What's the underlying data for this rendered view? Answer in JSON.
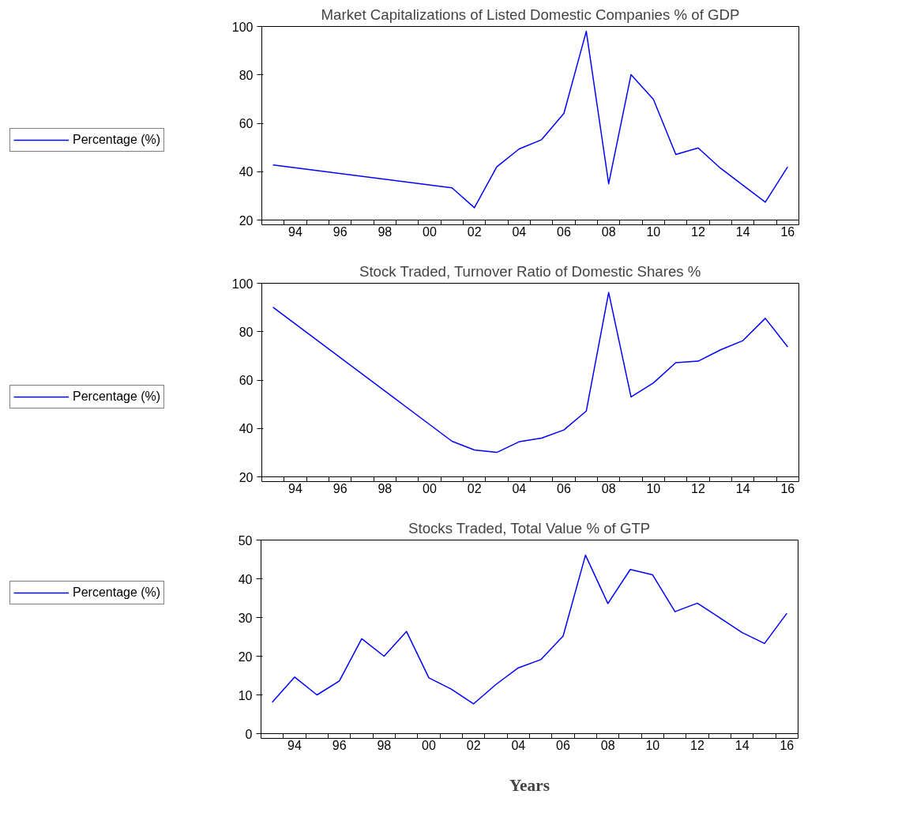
{
  "chart_data": [
    {
      "type": "line",
      "title": "Market Capitalizations of Listed Domestic Companies % of GDP",
      "x": [
        1993,
        2001,
        2002,
        2003,
        2004,
        2005,
        2006,
        2007,
        2008,
        2009,
        2010,
        2011,
        2012,
        2013,
        2014,
        2015,
        2016
      ],
      "series": [
        {
          "name": "Percentage (%)",
          "color": "#0000ff",
          "values": [
            42.8,
            33.3,
            25.1,
            42.0,
            49.4,
            53.2,
            64.1,
            98.0,
            35.0,
            80.1,
            69.9,
            47.1,
            49.8,
            41.4,
            34.4,
            27.4,
            42.0
          ]
        }
      ],
      "xlim": [
        1992.5,
        2016.5
      ],
      "ylim": [
        20,
        100
      ],
      "yticks": [
        20,
        40,
        60,
        80,
        100
      ],
      "xticks": [
        {
          "value": 1994,
          "label": "94"
        },
        {
          "value": 1996,
          "label": "96"
        },
        {
          "value": 1998,
          "label": "98"
        },
        {
          "value": 2000,
          "label": "00"
        },
        {
          "value": 2002,
          "label": "02"
        },
        {
          "value": 2004,
          "label": "04"
        },
        {
          "value": 2006,
          "label": "06"
        },
        {
          "value": 2008,
          "label": "08"
        },
        {
          "value": 2010,
          "label": "10"
        },
        {
          "value": 2012,
          "label": "12"
        },
        {
          "value": 2014,
          "label": "14"
        },
        {
          "value": 2016,
          "label": "16"
        },
        {
          "value": 1992.5,
          "label": null
        },
        {
          "value": 1993.5,
          "label": null
        },
        {
          "value": 1994.5,
          "label": null
        },
        {
          "value": 1995.5,
          "label": null
        },
        {
          "value": 1996.5,
          "label": null
        },
        {
          "value": 1997.5,
          "label": null
        },
        {
          "value": 1998.5,
          "label": null
        },
        {
          "value": 1999.5,
          "label": null
        },
        {
          "value": 2000.5,
          "label": null
        },
        {
          "value": 2001.5,
          "label": null
        },
        {
          "value": 2002.5,
          "label": null
        },
        {
          "value": 2003.5,
          "label": null
        },
        {
          "value": 2004.5,
          "label": null
        },
        {
          "value": 2005.5,
          "label": null
        },
        {
          "value": 2006.5,
          "label": null
        },
        {
          "value": 2007.5,
          "label": null
        },
        {
          "value": 2008.5,
          "label": null
        },
        {
          "value": 2009.5,
          "label": null
        },
        {
          "value": 2010.5,
          "label": null
        },
        {
          "value": 2011.5,
          "label": null
        },
        {
          "value": 2012.5,
          "label": null
        },
        {
          "value": 2013.5,
          "label": null
        },
        {
          "value": 2014.5,
          "label": null
        },
        {
          "value": 2015.5,
          "label": null
        },
        {
          "value": 2016.5,
          "label": null
        }
      ],
      "legend": "left",
      "grid": false
    },
    {
      "type": "line",
      "title": "Stock Traded, Turnover Ratio of Domestic Shares %",
      "x": [
        1993,
        2001,
        2002,
        2003,
        2004,
        2005,
        2006,
        2007,
        2008,
        2009,
        2010,
        2011,
        2012,
        2013,
        2014,
        2015,
        2016
      ],
      "series": [
        {
          "name": "Percentage (%)",
          "color": "#0000ff",
          "values": [
            90.1,
            34.7,
            31.1,
            30.1,
            34.5,
            36.0,
            39.4,
            47.2,
            96.2,
            53.0,
            58.8,
            67.2,
            67.8,
            72.5,
            76.3,
            85.5,
            73.7
          ]
        }
      ],
      "xlim": [
        1992.5,
        2016.5
      ],
      "ylim": [
        20,
        100
      ],
      "yticks": [
        20,
        40,
        60,
        80,
        100
      ],
      "xticks": [
        {
          "value": 1994,
          "label": "94"
        },
        {
          "value": 1996,
          "label": "96"
        },
        {
          "value": 1998,
          "label": "98"
        },
        {
          "value": 2000,
          "label": "00"
        },
        {
          "value": 2002,
          "label": "02"
        },
        {
          "value": 2004,
          "label": "04"
        },
        {
          "value": 2006,
          "label": "06"
        },
        {
          "value": 2008,
          "label": "08"
        },
        {
          "value": 2010,
          "label": "10"
        },
        {
          "value": 2012,
          "label": "12"
        },
        {
          "value": 2014,
          "label": "14"
        },
        {
          "value": 2016,
          "label": "16"
        },
        {
          "value": 1992.5,
          "label": null
        },
        {
          "value": 1993.5,
          "label": null
        },
        {
          "value": 1994.5,
          "label": null
        },
        {
          "value": 1995.5,
          "label": null
        },
        {
          "value": 1996.5,
          "label": null
        },
        {
          "value": 1997.5,
          "label": null
        },
        {
          "value": 1998.5,
          "label": null
        },
        {
          "value": 1999.5,
          "label": null
        },
        {
          "value": 2000.5,
          "label": null
        },
        {
          "value": 2001.5,
          "label": null
        },
        {
          "value": 2002.5,
          "label": null
        },
        {
          "value": 2003.5,
          "label": null
        },
        {
          "value": 2004.5,
          "label": null
        },
        {
          "value": 2005.5,
          "label": null
        },
        {
          "value": 2006.5,
          "label": null
        },
        {
          "value": 2007.5,
          "label": null
        },
        {
          "value": 2008.5,
          "label": null
        },
        {
          "value": 2009.5,
          "label": null
        },
        {
          "value": 2010.5,
          "label": null
        },
        {
          "value": 2011.5,
          "label": null
        },
        {
          "value": 2012.5,
          "label": null
        },
        {
          "value": 2013.5,
          "label": null
        },
        {
          "value": 2014.5,
          "label": null
        },
        {
          "value": 2015.5,
          "label": null
        },
        {
          "value": 2016.5,
          "label": null
        }
      ],
      "legend": "left",
      "grid": false
    },
    {
      "type": "line",
      "title": "Stocks Traded, Total Value % of GTP",
      "xlabel": "Years",
      "x": [
        1993,
        1994,
        1995,
        1996,
        1997,
        1998,
        1999,
        2000,
        2001,
        2002,
        2003,
        2004,
        2005,
        2006,
        2007,
        2008,
        2009,
        2010,
        2011,
        2012,
        2013,
        2014,
        2015,
        2016
      ],
      "series": [
        {
          "name": "Percentage (%)",
          "color": "#0000ff",
          "values": [
            8.1,
            14.6,
            10.0,
            13.6,
            24.5,
            20.0,
            26.4,
            14.4,
            11.5,
            7.7,
            12.7,
            17.0,
            19.1,
            25.2,
            46.1,
            33.6,
            42.4,
            41.0,
            31.5,
            33.7,
            29.9,
            26.1,
            23.3,
            31.1
          ]
        }
      ],
      "xlim": [
        1992.5,
        2016.5
      ],
      "ylim": [
        0,
        50
      ],
      "yticks": [
        0,
        10,
        20,
        30,
        40,
        50
      ],
      "xticks": [
        {
          "value": 1994,
          "label": "94"
        },
        {
          "value": 1996,
          "label": "96"
        },
        {
          "value": 1998,
          "label": "98"
        },
        {
          "value": 2000,
          "label": "00"
        },
        {
          "value": 2002,
          "label": "02"
        },
        {
          "value": 2004,
          "label": "04"
        },
        {
          "value": 2006,
          "label": "06"
        },
        {
          "value": 2008,
          "label": "08"
        },
        {
          "value": 2010,
          "label": "10"
        },
        {
          "value": 2012,
          "label": "12"
        },
        {
          "value": 2014,
          "label": "14"
        },
        {
          "value": 2016,
          "label": "16"
        },
        {
          "value": 1992.5,
          "label": null
        },
        {
          "value": 1993.5,
          "label": null
        },
        {
          "value": 1994.5,
          "label": null
        },
        {
          "value": 1995.5,
          "label": null
        },
        {
          "value": 1996.5,
          "label": null
        },
        {
          "value": 1997.5,
          "label": null
        },
        {
          "value": 1998.5,
          "label": null
        },
        {
          "value": 1999.5,
          "label": null
        },
        {
          "value": 2000.5,
          "label": null
        },
        {
          "value": 2001.5,
          "label": null
        },
        {
          "value": 2002.5,
          "label": null
        },
        {
          "value": 2003.5,
          "label": null
        },
        {
          "value": 2004.5,
          "label": null
        },
        {
          "value": 2005.5,
          "label": null
        },
        {
          "value": 2006.5,
          "label": null
        },
        {
          "value": 2007.5,
          "label": null
        },
        {
          "value": 2008.5,
          "label": null
        },
        {
          "value": 2009.5,
          "label": null
        },
        {
          "value": 2010.5,
          "label": null
        },
        {
          "value": 2011.5,
          "label": null
        },
        {
          "value": 2012.5,
          "label": null
        },
        {
          "value": 2013.5,
          "label": null
        },
        {
          "value": 2014.5,
          "label": null
        },
        {
          "value": 2015.5,
          "label": null
        },
        {
          "value": 2016.5,
          "label": null
        }
      ],
      "legend": "left",
      "grid": false
    }
  ]
}
